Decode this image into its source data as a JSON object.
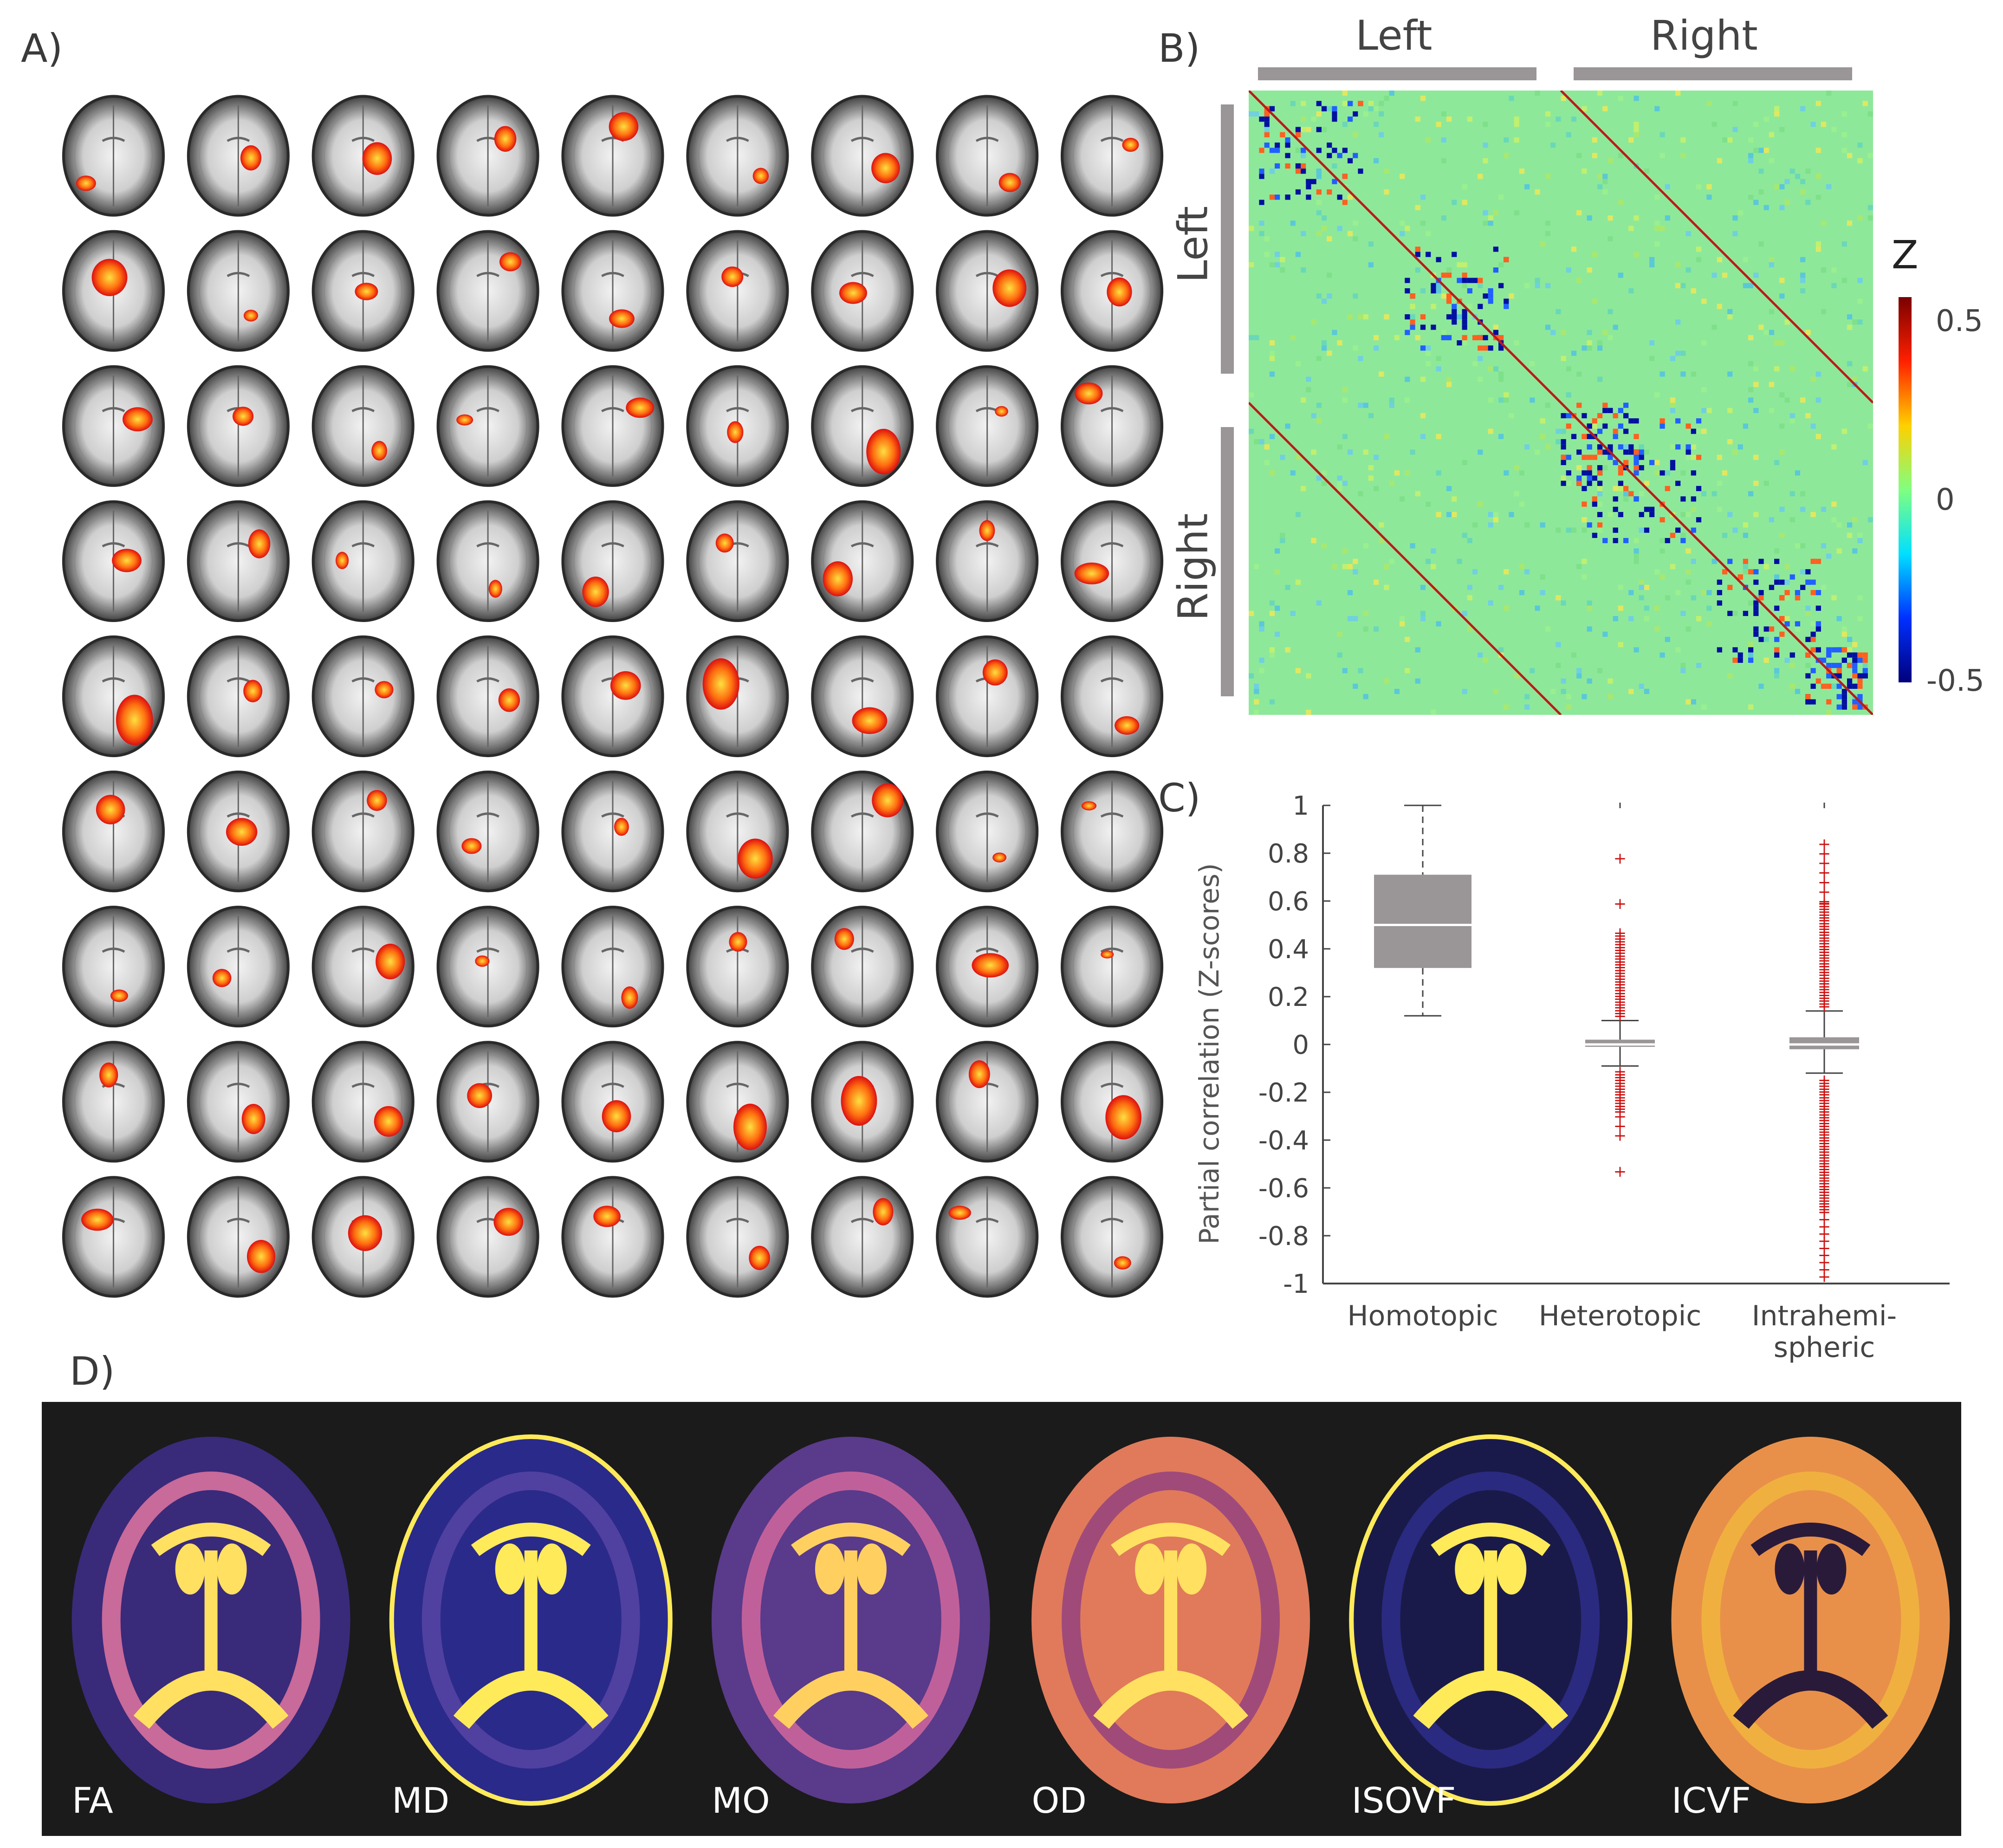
{
  "panels": {
    "a": {
      "label": "A)",
      "rows": 9,
      "cols": 9
    },
    "b": {
      "label": "B)",
      "top_left": "Left",
      "top_right": "Right",
      "side_left": "Left",
      "side_right": "Right",
      "colorbar_title": "Z",
      "colorbar_ticks": [
        "0.5",
        "0",
        "-0.5"
      ]
    },
    "c": {
      "label": "C)"
    },
    "d": {
      "label": "D)",
      "maps": [
        {
          "name": "FA",
          "bg": "#3a2a7a",
          "mid": "#c86a9a",
          "hi": "#ffe060"
        },
        {
          "name": "MD",
          "bg": "#2a2a8a",
          "mid": "#5040a0",
          "hi": "#ffea5a"
        },
        {
          "name": "MO",
          "bg": "#5a3a8a",
          "mid": "#c0609a",
          "hi": "#ffd060"
        },
        {
          "name": "OD",
          "bg": "#e07a5a",
          "mid": "#a04a7a",
          "hi": "#ffe060"
        },
        {
          "name": "ISOVF",
          "bg": "#1a1a4a",
          "mid": "#2a2a80",
          "hi": "#ffea5a"
        },
        {
          "name": "ICVF",
          "bg": "#e8904a",
          "mid": "#f0b040",
          "hi": "#2a1a3a"
        }
      ]
    }
  },
  "chart_data": {
    "type": "box",
    "ylabel": "Partial correlation (Z-scores)",
    "ylim": [
      -1,
      1
    ],
    "yticks": [
      "1",
      "0.8",
      "0.6",
      "0.4",
      "0.2",
      "0",
      "-0.2",
      "-0.4",
      "-0.6",
      "-0.8",
      "-1"
    ],
    "categories": [
      "Homotopic",
      "Heterotopic",
      "Intrahemi-\nspheric"
    ],
    "boxes": [
      {
        "name": "Homotopic",
        "min": 0.12,
        "q1": 0.32,
        "median": 0.5,
        "q3": 0.71,
        "max": 1.0,
        "outliers_low": [],
        "outliers_high": []
      },
      {
        "name": "Heterotopic",
        "min": -0.09,
        "q1": -0.01,
        "median": 0.0,
        "q3": 0.02,
        "max": 0.1,
        "outliers_low": [
          -0.1,
          -0.53
        ],
        "outliers_high": [
          0.47,
          0.78
        ]
      },
      {
        "name": "Intrahemispheric",
        "min": -0.12,
        "q1": -0.02,
        "median": 0.0,
        "q3": 0.03,
        "max": 0.14,
        "outliers_low": [
          -0.12,
          -0.97
        ],
        "outliers_high": [
          0.84,
          0.15
        ]
      }
    ],
    "colors": {
      "box": "#9a9596",
      "outlier": "#cc1111"
    }
  },
  "colorbar": {
    "stops": [
      "#7a0000",
      "#ff2000",
      "#ffd000",
      "#80ff80",
      "#00e0ff",
      "#0030ff",
      "#00007a"
    ]
  }
}
